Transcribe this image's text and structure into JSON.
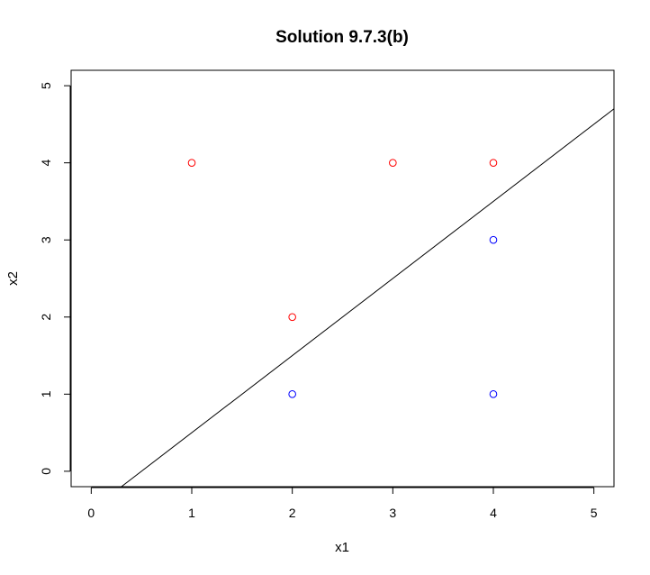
{
  "chart_data": {
    "type": "scatter",
    "title": "Solution 9.7.3(b)",
    "xlabel": "x1",
    "ylabel": "x2",
    "xlim": [
      -0.2,
      5.2
    ],
    "ylim": [
      -0.2,
      5.2
    ],
    "xticks": [
      "0",
      "1",
      "2",
      "3",
      "4",
      "5"
    ],
    "yticks": [
      "0",
      "1",
      "2",
      "3",
      "4",
      "5"
    ],
    "grid": false,
    "series": [
      {
        "color": "#ff0000",
        "x": [
          3,
          2,
          4,
          1
        ],
        "y": [
          4,
          2,
          4,
          4
        ]
      },
      {
        "color": "#0000ff",
        "x": [
          2,
          4,
          4
        ],
        "y": [
          1,
          3,
          1
        ]
      }
    ],
    "line": {
      "intercept": -0.5,
      "slope": 1,
      "color": "#000000"
    }
  }
}
